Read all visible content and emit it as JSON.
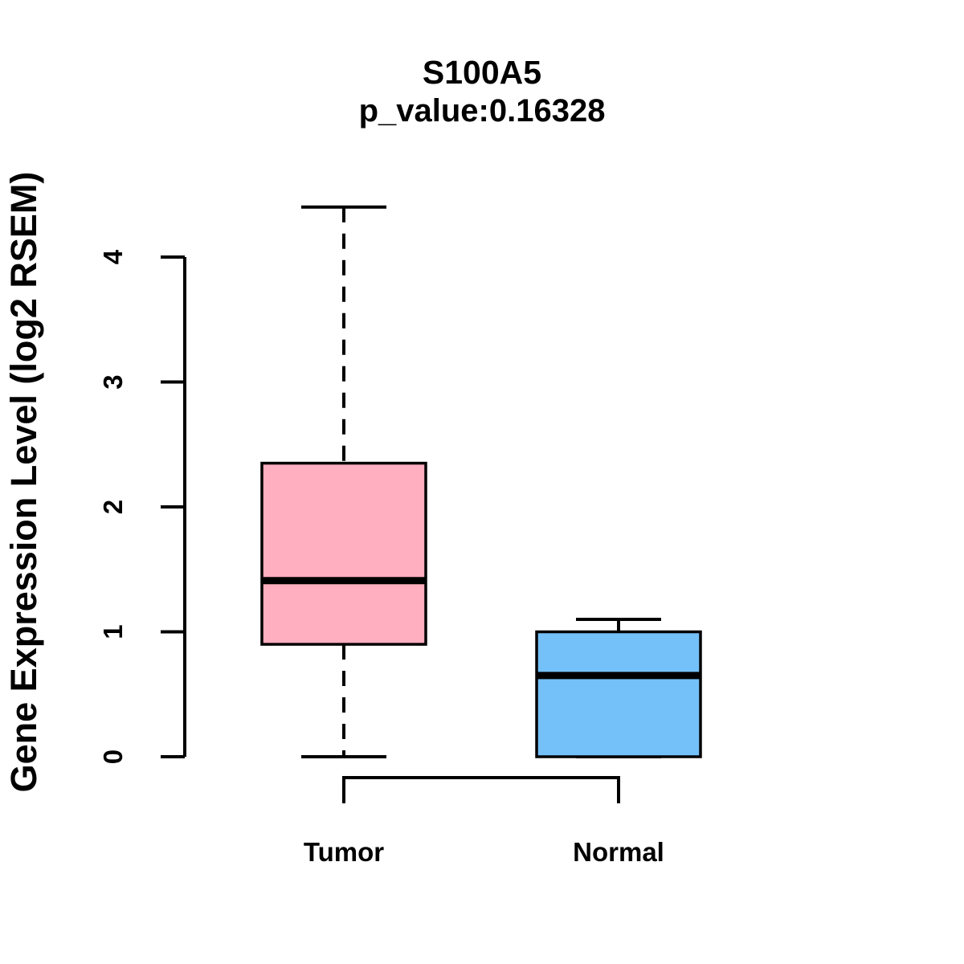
{
  "title": "S100A5",
  "subtitle": "p_value:0.16328",
  "chart_data": {
    "type": "boxplot",
    "title": "S100A5",
    "subtitle": "p_value:0.16328",
    "ylabel": "Gene Expression Level (log2 RSEM)",
    "ylim": [
      0,
      4.4
    ],
    "yticks": [
      0,
      1,
      2,
      3,
      4
    ],
    "grid": false,
    "groups": [
      {
        "label": "Tumor",
        "color": "#FFAFC0",
        "whisker_low": 0,
        "q1": 0.9,
        "median": 1.41,
        "q3": 2.35,
        "whisker_high": 4.4
      },
      {
        "label": "Normal",
        "color": "#74C0F8",
        "whisker_low": 0,
        "q1": 0,
        "median": 0.65,
        "q3": 1.0,
        "whisker_high": 1.1
      }
    ],
    "comparison_bracket": [
      "Tumor",
      "Normal"
    ]
  }
}
